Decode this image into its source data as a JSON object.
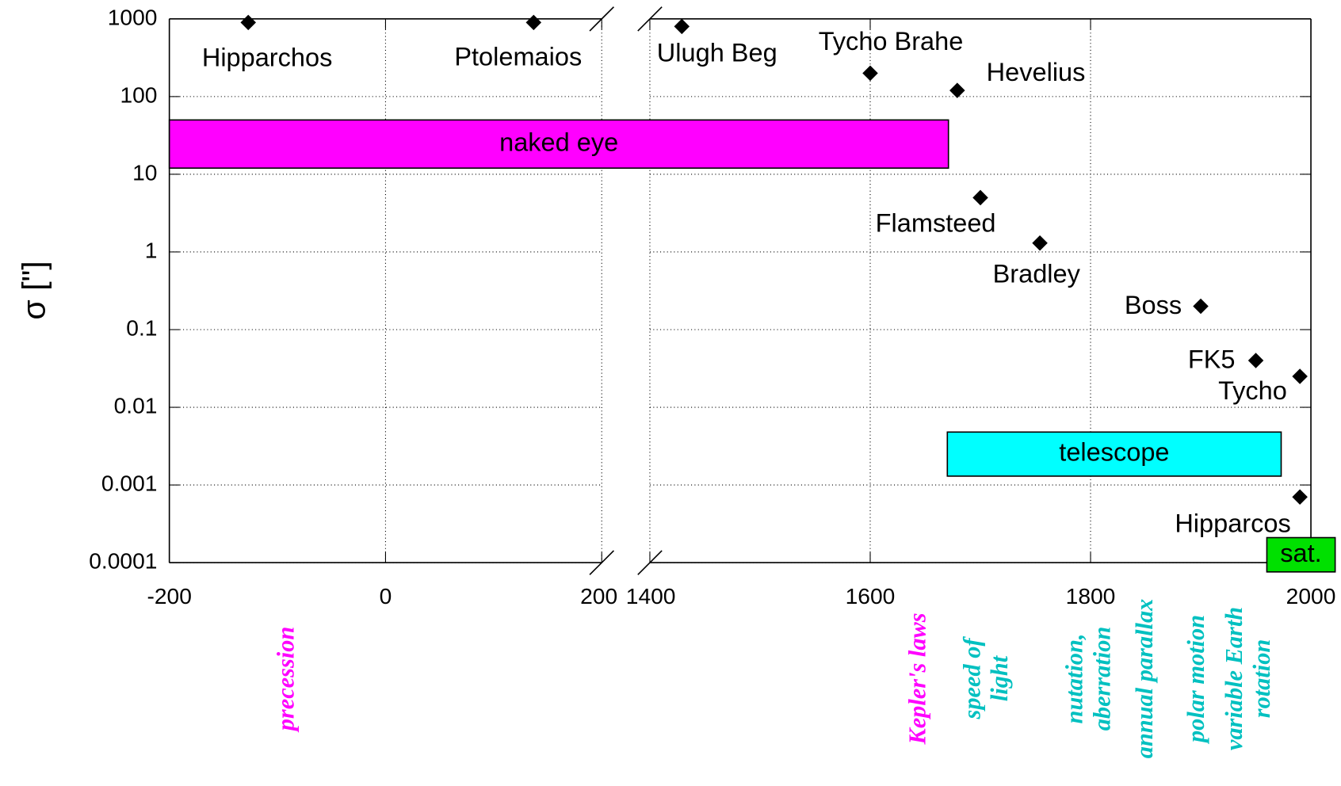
{
  "chart_data": {
    "type": "scatter",
    "y_label": "σ [\"]",
    "log_y": true,
    "grid": true,
    "ylim": [
      0.0001,
      1000
    ],
    "yticks": [
      0.0001,
      0.001,
      0.01,
      0.1,
      1,
      10,
      100,
      1000
    ],
    "x_segments": [
      {
        "xlim": [
          -200,
          200
        ],
        "xticks": [
          -200,
          0,
          200
        ]
      },
      {
        "xlim": [
          1400,
          2000
        ],
        "xticks": [
          1400,
          1600,
          1800,
          2000
        ]
      }
    ],
    "points": {
      "labels": [
        "Hipparchos",
        "Ptolemaios",
        "Ulugh Beg",
        "Tycho Brahe",
        "Hevelius",
        "Flamsteed",
        "Bradley",
        "Boss",
        "FK5",
        "Tycho",
        "Hipparcos"
      ],
      "x": [
        -127,
        137,
        1429,
        1600,
        1679,
        1700,
        1754,
        1900,
        1950,
        1990,
        1990
      ],
      "values": [
        900,
        900,
        800,
        200,
        120,
        5,
        1.3,
        0.2,
        0.04,
        0.025,
        0.0007
      ],
      "color": "#000000"
    },
    "bands": [
      {
        "label": "naked eye",
        "x": [
          -200,
          1671
        ],
        "y": [
          12,
          50
        ],
        "color": "#ff00ff"
      },
      {
        "label": "telescope",
        "x": [
          1670,
          1973
        ],
        "y": [
          0.0013,
          0.0048
        ],
        "color": "#00ffff"
      },
      {
        "label": "sat.",
        "x": [
          1960,
          2022
        ],
        "y": [
          7.6e-05,
          0.00021
        ],
        "color": "#00e000"
      }
    ],
    "annotations": [
      {
        "text": "precession",
        "x": -90,
        "color": "#ff00ff"
      },
      {
        "text": "Kepler's laws",
        "x": 1645,
        "color": "#ff00ff"
      },
      {
        "text": "speed of light",
        "x": 1707,
        "color": "#00c0c0"
      },
      {
        "text": "nutation, aberration",
        "x": 1800,
        "color": "#00c0c0"
      },
      {
        "text": "annual parallax",
        "x": 1851,
        "color": "#00c0c0"
      },
      {
        "text": "polar motion",
        "x": 1898,
        "color": "#00c0c0"
      },
      {
        "text": "variable Earth rotation",
        "x": 1945,
        "color": "#00c0c0"
      }
    ]
  }
}
